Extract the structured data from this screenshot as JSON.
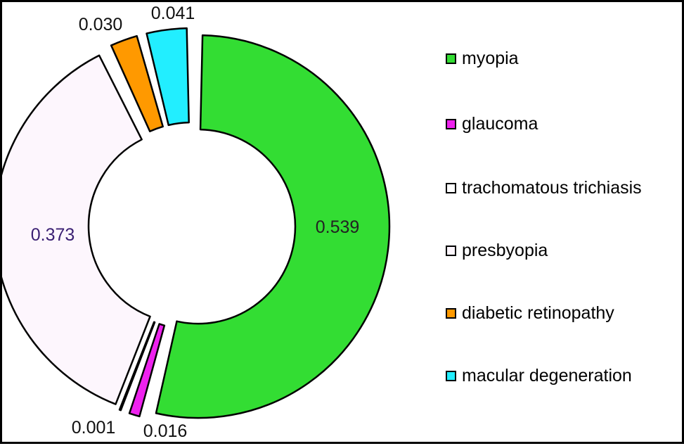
{
  "chart_data": {
    "type": "pie",
    "style": "donut",
    "title": "",
    "categories": [
      "myopia",
      "glaucoma",
      "trachomatous trichiasis",
      "presbyopia",
      "diabetic retinopathy",
      "macular degeneration"
    ],
    "values": [
      0.539,
      0.016,
      0.001,
      0.373,
      0.03,
      0.041
    ],
    "value_labels": [
      "0.539",
      "0.016",
      "0.001",
      "0.373",
      "0.030",
      "0.041"
    ],
    "colors": [
      "#33dd33",
      "#ee22ee",
      "#ffffff",
      "#fdf6fd",
      "#ff9900",
      "#22eeff"
    ],
    "label_colors": [
      "#222222",
      "#111111",
      "#111111",
      "#3a1f73",
      "#111111",
      "#111111"
    ],
    "exploded": true,
    "legend": {
      "position": "right",
      "entries": [
        "myopia",
        "glaucoma",
        "trachomatous trichiasis",
        "presbyopia",
        "diabetic retinopathy",
        "macular degeneration"
      ]
    }
  }
}
